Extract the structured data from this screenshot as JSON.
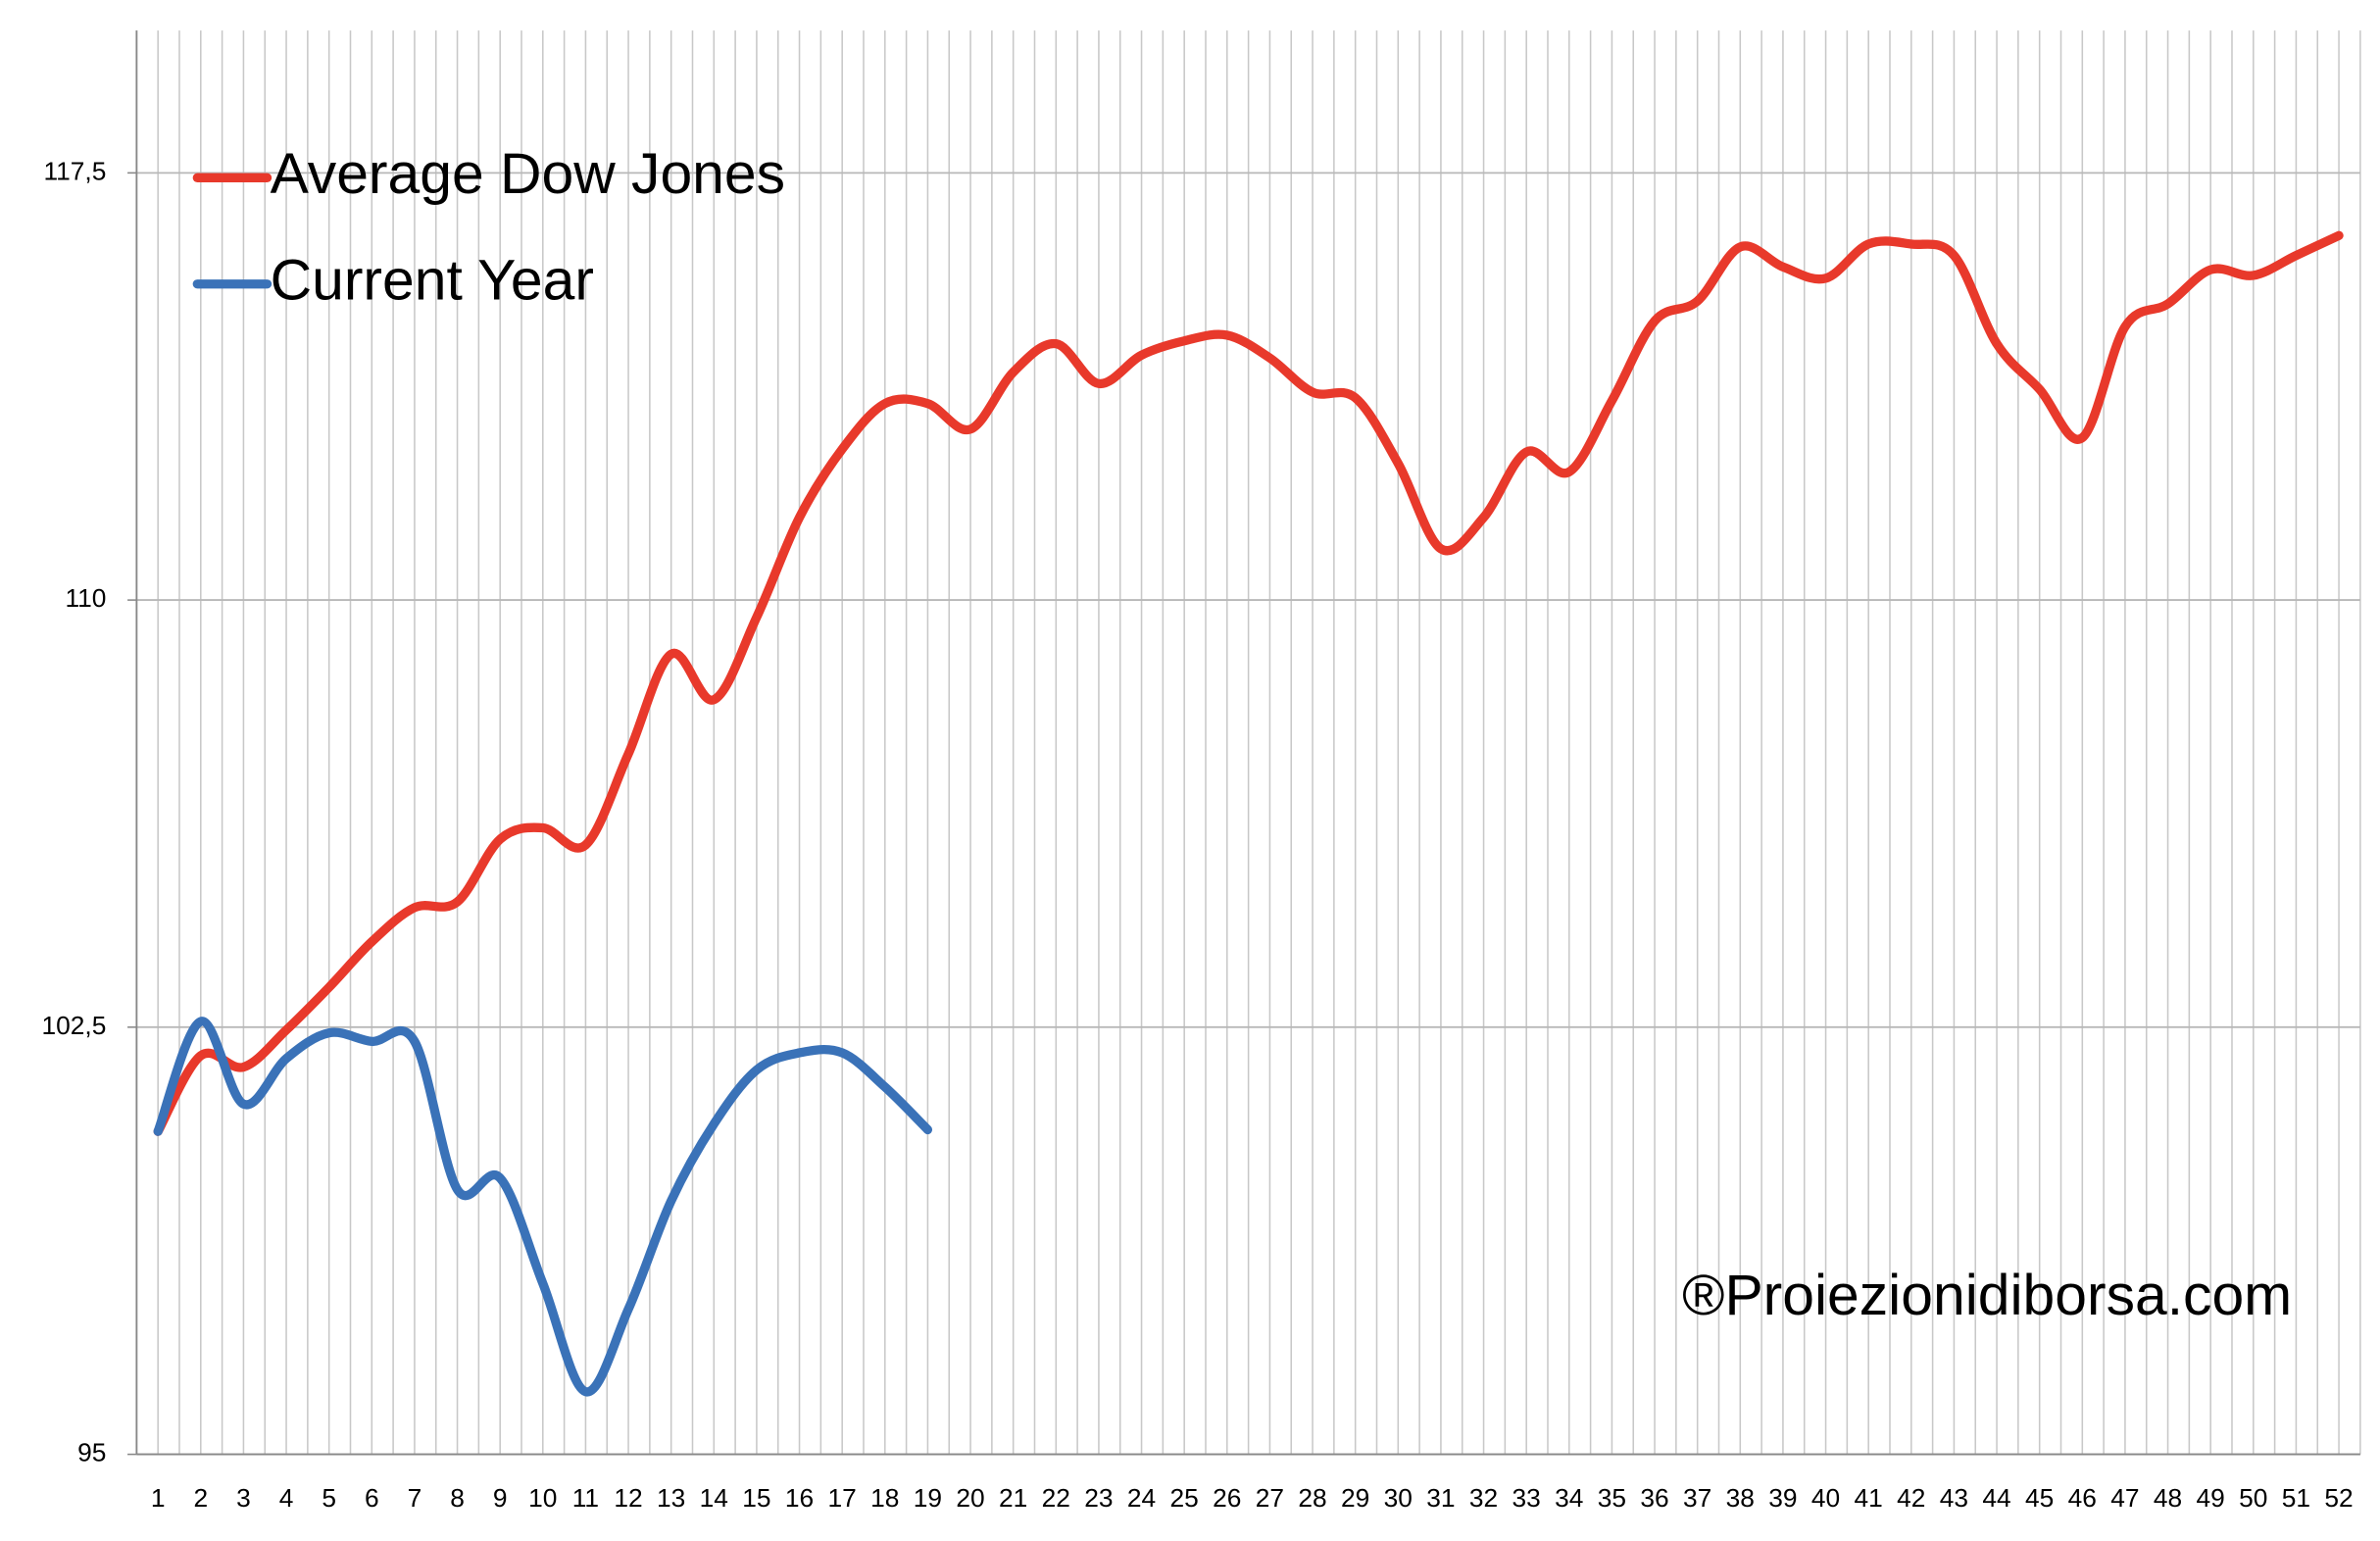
{
  "chart_data": {
    "type": "line",
    "categories": [
      "1",
      "2",
      "3",
      "4",
      "5",
      "6",
      "7",
      "8",
      "9",
      "10",
      "11",
      "12",
      "13",
      "14",
      "15",
      "16",
      "17",
      "18",
      "19",
      "20",
      "21",
      "22",
      "23",
      "24",
      "25",
      "26",
      "27",
      "28",
      "29",
      "30",
      "31",
      "32",
      "33",
      "34",
      "35",
      "36",
      "37",
      "38",
      "39",
      "40",
      "41",
      "42",
      "43",
      "44",
      "45",
      "46",
      "47",
      "48",
      "49",
      "50",
      "51",
      "52"
    ],
    "series": [
      {
        "name": "Average Dow Jones",
        "color": "#e8392b",
        "values": [
          100.67,
          102.0,
          101.8,
          102.45,
          103.2,
          104.0,
          104.6,
          104.7,
          105.8,
          106.0,
          105.7,
          107.3,
          109.05,
          108.25,
          109.7,
          111.45,
          112.65,
          113.45,
          113.45,
          113.0,
          114.0,
          114.5,
          113.8,
          114.3,
          114.55,
          114.65,
          114.25,
          113.65,
          113.55,
          112.4,
          110.9,
          111.45,
          112.6,
          112.25,
          113.5,
          114.9,
          115.25,
          116.2,
          115.85,
          115.65,
          116.25,
          116.25,
          116.05,
          114.5,
          113.7,
          112.85,
          114.8,
          115.2,
          115.8,
          115.7,
          116.05,
          116.4
        ]
      },
      {
        "name": "Current Year",
        "color": "#3a72b8",
        "values": [
          100.67,
          102.6,
          101.15,
          101.95,
          102.4,
          102.25,
          102.25,
          99.65,
          99.85,
          98.0,
          96.1,
          97.55,
          99.45,
          100.8,
          101.75,
          102.05,
          102.05,
          101.45,
          100.7,
          null,
          null,
          null,
          null,
          null,
          null,
          null,
          null,
          null,
          null,
          null,
          null,
          null,
          null,
          null,
          null,
          null,
          null,
          null,
          null,
          null,
          null,
          null,
          null,
          null,
          null,
          null,
          null,
          null,
          null,
          null,
          null,
          null
        ]
      }
    ],
    "ylim": [
      95,
      120
    ],
    "yticks": [
      95,
      {
        "value": 102.5,
        "label": "102,5"
      },
      110,
      {
        "value": 117.5,
        "label": "117,5"
      }
    ],
    "grid": true,
    "legend": "upper left",
    "annotation": "®Proiezionidiborsa.com"
  }
}
